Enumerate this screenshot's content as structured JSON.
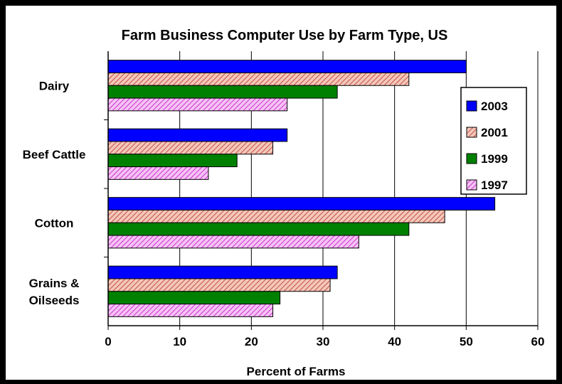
{
  "chart_data": {
    "type": "bar",
    "orientation": "horizontal",
    "title": "Farm Business Computer Use by Farm Type, US",
    "xlabel": "Percent of Farms",
    "ylabel": "",
    "xlim": [
      0,
      60
    ],
    "xticks": [
      "0",
      "10",
      "20",
      "30",
      "40",
      "50",
      "60"
    ],
    "grid": "vertical",
    "legend": "right",
    "categories": [
      "Dairy",
      "Beef Cattle",
      "Cotton",
      "Grains &\nOilseeds"
    ],
    "series": [
      {
        "name": "2003",
        "color": "#0000ff",
        "pattern": "solid",
        "values": [
          50,
          25,
          54,
          32
        ]
      },
      {
        "name": "2001",
        "color": "#e06666",
        "pattern": "hatch-salmon",
        "values": [
          42,
          23,
          47,
          31
        ]
      },
      {
        "name": "1999",
        "color": "#008000",
        "pattern": "solid",
        "values": [
          32,
          18,
          42,
          24
        ]
      },
      {
        "name": "1997",
        "color": "#cc33cc",
        "pattern": "hatch-magenta",
        "values": [
          25,
          14,
          35,
          23
        ]
      }
    ]
  }
}
